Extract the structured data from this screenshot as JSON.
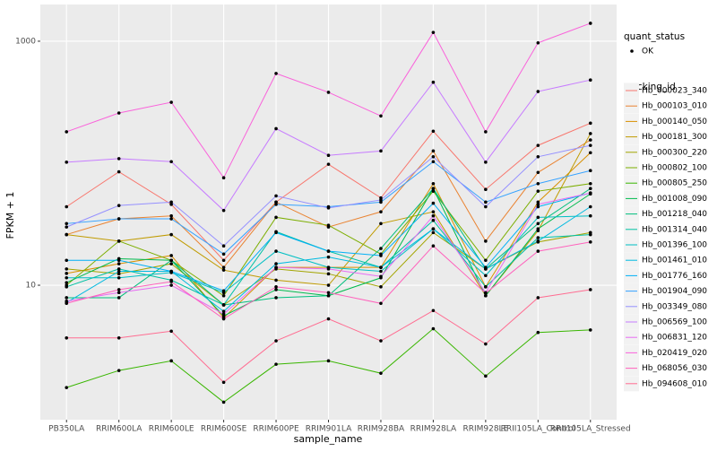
{
  "chart_data": {
    "type": "line",
    "x_label": "sample_name",
    "y_label": "FPKM + 1",
    "log_y": true,
    "grid": true,
    "categories": [
      "PB350LA",
      "RRIM600LA",
      "RRIM600LE",
      "RRIM600SE",
      "RRIM600PE",
      "RRIM901LA",
      "RRIM928BA",
      "RRIM928LA",
      "RRIM928LE",
      "RRII105LA_Control",
      "RRII105LA_Stressed"
    ],
    "ylim": [
      0.79,
      2000
    ],
    "yticks": [
      10,
      1000
    ],
    "legend_position": "right",
    "shape_legend": {
      "title": "quant_status",
      "labels": [
        "OK"
      ]
    },
    "color_legend_title": "tracking_id",
    "series": [
      {
        "name": "Hb_000023_340",
        "color": "#F8766D",
        "values": [
          44,
          85,
          46,
          16,
          48,
          98,
          52,
          183,
          61,
          140,
          213
        ]
      },
      {
        "name": "Hb_000103_010",
        "color": "#EA8331",
        "values": [
          26,
          35,
          37,
          14,
          48,
          30,
          40,
          126,
          23,
          84,
          155
        ]
      },
      {
        "name": "Hb_000140_050",
        "color": "#D89000",
        "values": [
          12.5,
          15,
          17.5,
          5.4,
          14,
          14,
          14,
          68,
          9.7,
          48,
          122
        ]
      },
      {
        "name": "Hb_000181_300",
        "color": "#C09B00",
        "values": [
          26,
          23,
          26,
          13.3,
          11,
          10,
          32,
          40,
          8.2,
          28,
          175
        ]
      },
      {
        "name": "Hb_000300_220",
        "color": "#A3A500",
        "values": [
          13.6,
          12.4,
          15,
          6.9,
          13.6,
          12.4,
          9.7,
          27,
          13.6,
          22.6,
          27
        ]
      },
      {
        "name": "Hb_000802_100",
        "color": "#7CAE00",
        "values": [
          10,
          23,
          16,
          8.2,
          36,
          31,
          18,
          59,
          16,
          59,
          68
        ]
      },
      {
        "name": "Hb_000805_250",
        "color": "#39B600",
        "values": [
          1.45,
          2.0,
          2.4,
          1.1,
          2.25,
          2.4,
          1.9,
          4.4,
          1.8,
          4.1,
          4.3
        ]
      },
      {
        "name": "Hb_001008_090",
        "color": "#00BB4E",
        "values": [
          10.5,
          16.5,
          16,
          5.6,
          9.2,
          8.2,
          11.5,
          62,
          8.2,
          29,
          56
        ]
      },
      {
        "name": "Hb_001218_040",
        "color": "#00BF7D",
        "values": [
          7.9,
          7.9,
          16,
          6.9,
          7.9,
          8.2,
          20,
          62,
          13.6,
          32,
          62
        ]
      },
      {
        "name": "Hb_001314_040",
        "color": "#00C1A3",
        "values": [
          9.7,
          13.6,
          11,
          6.9,
          27.5,
          19,
          14,
          34,
          9.7,
          24.5,
          26
        ]
      },
      {
        "name": "Hb_001396_100",
        "color": "#00BFC4",
        "values": [
          11.5,
          11.5,
          12.7,
          8.7,
          19,
          14,
          13,
          29,
          12,
          36,
          37
        ]
      },
      {
        "name": "Hb_001461_010",
        "color": "#00BAE0",
        "values": [
          7.2,
          13,
          13,
          6.1,
          15,
          17,
          14,
          29,
          13.6,
          23,
          44
        ]
      },
      {
        "name": "Hb_001776_160",
        "color": "#00B0F6",
        "values": [
          16,
          16,
          13,
          9,
          27,
          19,
          17.5,
          47,
          14,
          44,
          57
        ]
      },
      {
        "name": "Hb_001904_090",
        "color": "#35A2FF",
        "values": [
          32,
          35,
          35,
          18,
          46,
          44,
          48,
          103,
          48,
          68,
          87
        ]
      },
      {
        "name": "Hb_003349_080",
        "color": "#9590FF",
        "values": [
          30,
          45,
          48,
          21,
          54,
          43,
          50,
          113,
          44,
          113,
          140
        ]
      },
      {
        "name": "Hb_006569_100",
        "color": "#C77CFF",
        "values": [
          102,
          109,
          103,
          41,
          192,
          116,
          126,
          461,
          102,
          387,
          481
        ]
      },
      {
        "name": "Hb_006831_120",
        "color": "#E76BF3",
        "values": [
          7.4,
          8.7,
          10,
          5.8,
          14,
          13.6,
          11.8,
          37,
          8.7,
          46,
          57
        ]
      },
      {
        "name": "Hb_020419_020",
        "color": "#FA62DB",
        "values": [
          181,
          258,
          316,
          76,
          544,
          381,
          244,
          1180,
          181,
          970,
          1403
        ]
      },
      {
        "name": "Hb_068056_030",
        "color": "#FF62BC",
        "values": [
          7.1,
          9.2,
          10.7,
          5.3,
          9.7,
          8.7,
          7.1,
          21,
          8.6,
          19,
          22.6
        ]
      },
      {
        "name": "Hb_094608_010",
        "color": "#FF6C91",
        "values": [
          3.7,
          3.7,
          4.2,
          1.6,
          3.5,
          5.3,
          3.5,
          6.2,
          3.3,
          7.9,
          9.2
        ]
      }
    ]
  }
}
